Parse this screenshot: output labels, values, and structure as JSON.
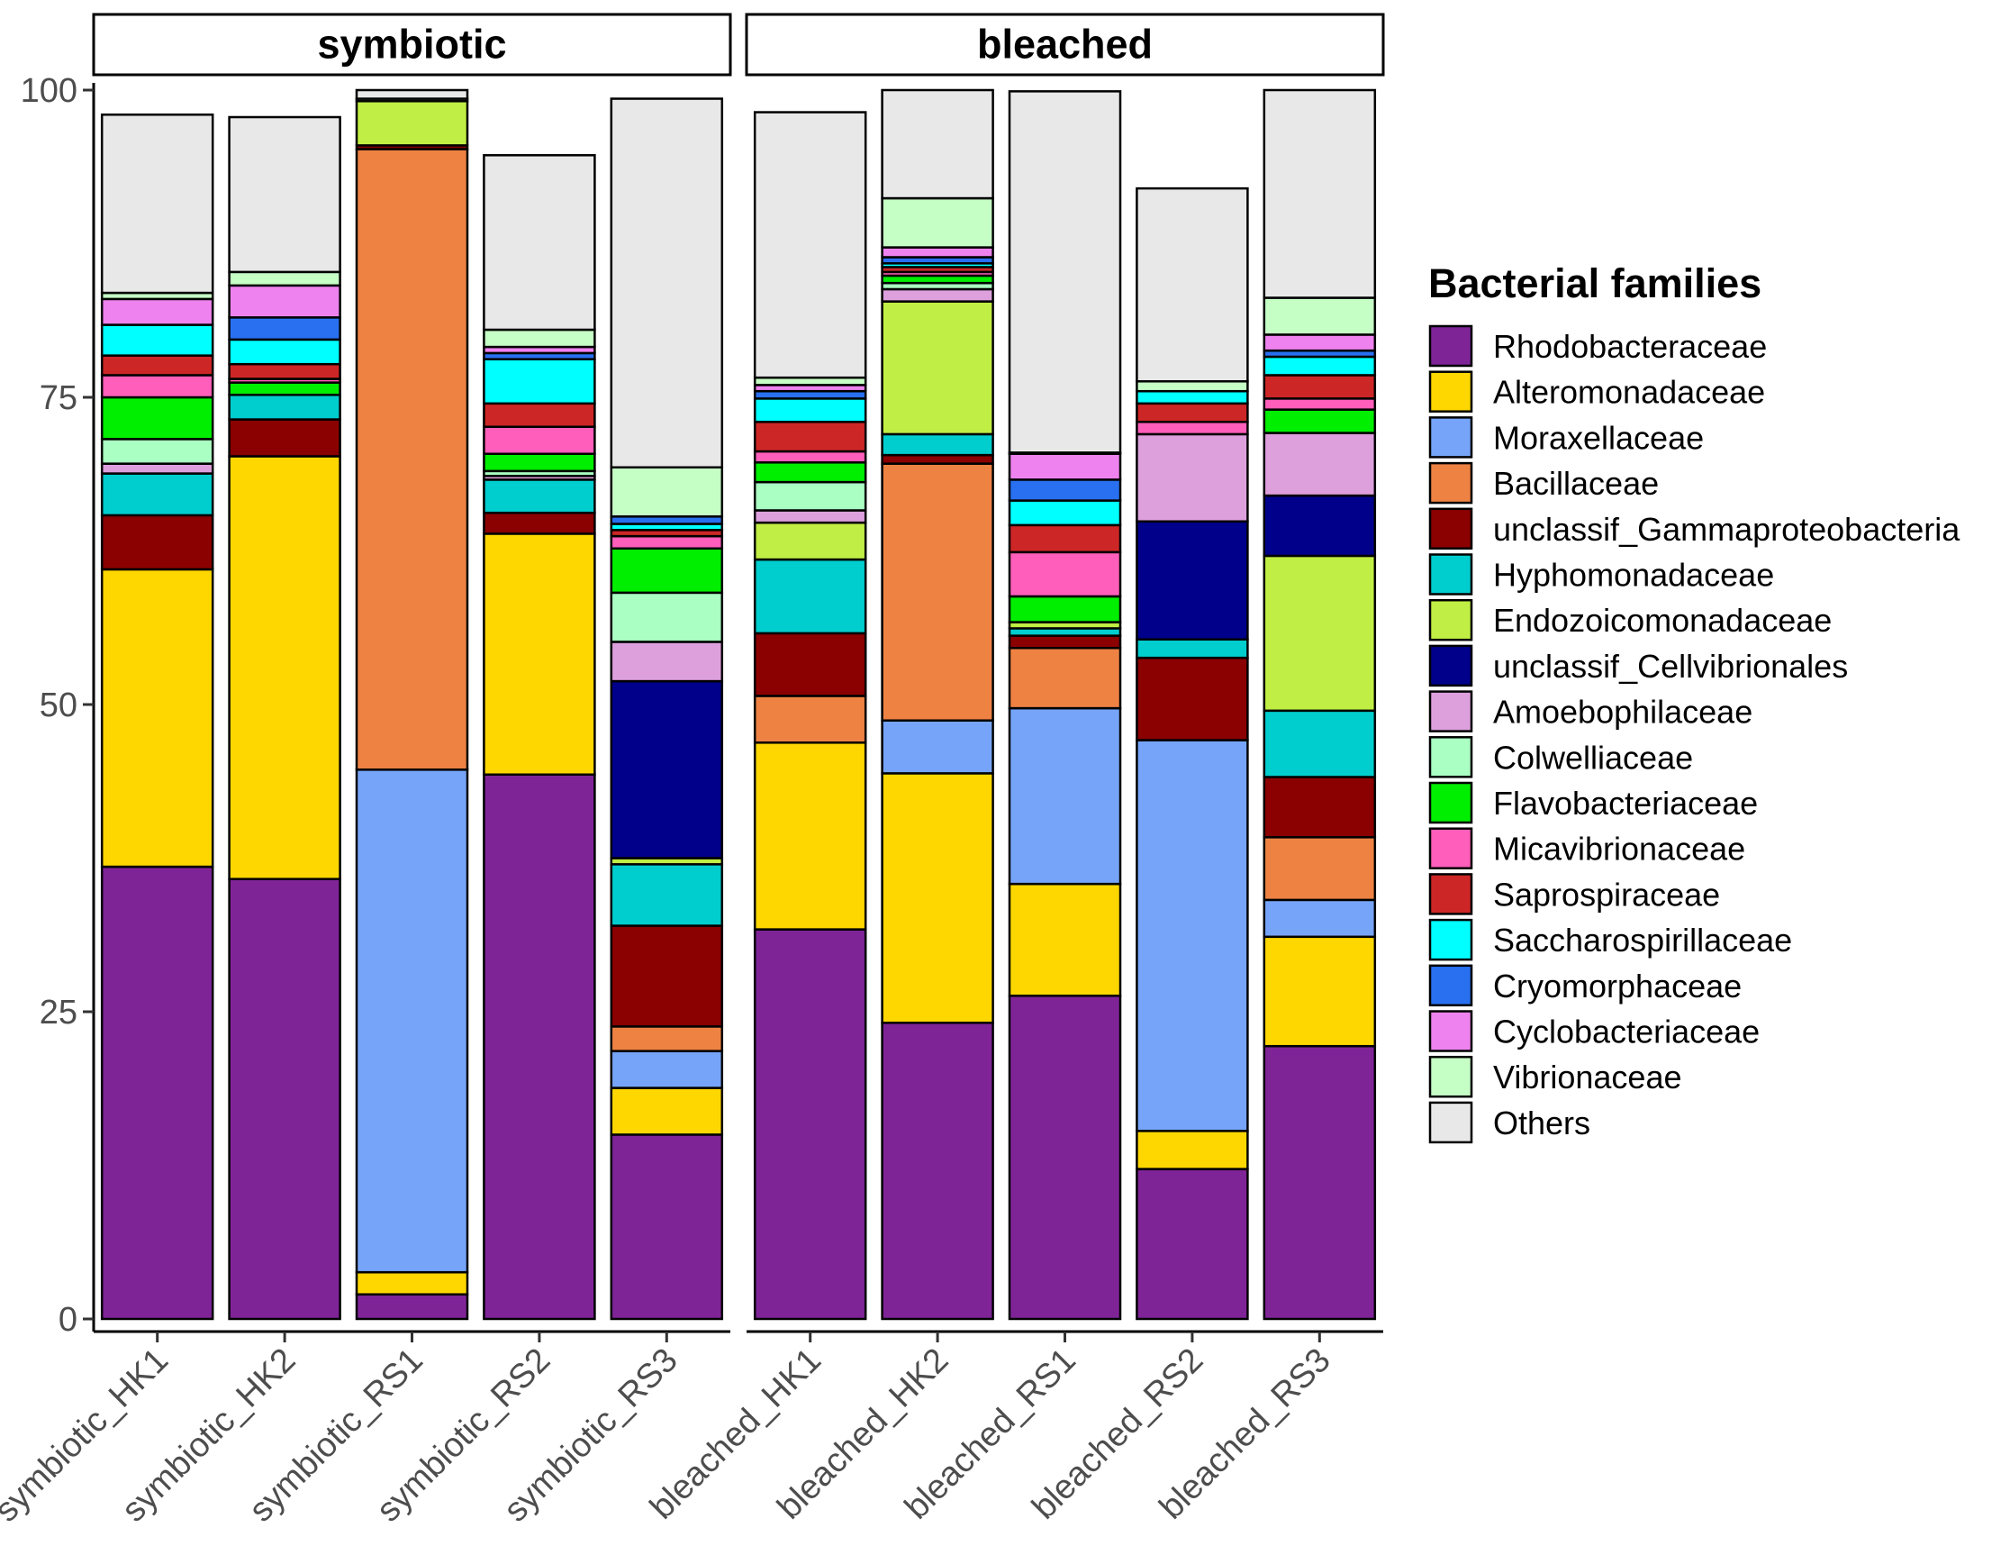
{
  "chart_data": {
    "type": "bar",
    "stacked": true,
    "ylim": [
      0,
      100
    ],
    "yticks": [
      "0",
      "25",
      "50",
      "75",
      "100"
    ],
    "legend": {
      "title": "Bacterial families",
      "placement": "right",
      "entries": [
        {
          "name": "Rhodobacteraceae",
          "color": "#7F2497"
        },
        {
          "name": "Alteromonadaceae",
          "color": "#FFD700"
        },
        {
          "name": "Moraxellaceae",
          "color": "#76A4F8"
        },
        {
          "name": "Bacillaceae",
          "color": "#EE8243"
        },
        {
          "name": "unclassif_Gammaproteobacteria",
          "color": "#8B0000"
        },
        {
          "name": "Hyphomonadaceae",
          "color": "#00CDCD"
        },
        {
          "name": "Endozoicomonadaceae",
          "color": "#C0EE44"
        },
        {
          "name": "unclassif_Cellvibrionales",
          "color": "#00008B"
        },
        {
          "name": "Amoebophilaceae",
          "color": "#DDA0DD"
        },
        {
          "name": "Colwelliaceae",
          "color": "#AAFFC3"
        },
        {
          "name": "Flavobacteriaceae",
          "color": "#00EE00"
        },
        {
          "name": "Micavibrionaceae",
          "color": "#FF5EBA"
        },
        {
          "name": "Saprospiraceae",
          "color": "#CD2626"
        },
        {
          "name": "Saccharospirillaceae",
          "color": "#00FFFF"
        },
        {
          "name": "Cryomorphaceae",
          "color": "#2870F0"
        },
        {
          "name": "Cyclobacteriaceae",
          "color": "#EE82EE"
        },
        {
          "name": "Vibrionaceae",
          "color": "#C6FFC6"
        },
        {
          "name": "Others",
          "color": "#E8E8E8"
        }
      ]
    },
    "panels": [
      {
        "label": "symbiotic",
        "samples": [
          {
            "name": "symbiotic_HK1",
            "values": [
              36.8,
              24.2,
              0,
              0,
              4.4,
              3.4,
              0,
              0,
              0.8,
              2.0,
              3.4,
              1.8,
              1.6,
              2.5,
              0,
              2.1,
              0.5,
              14.5
            ]
          },
          {
            "name": "symbiotic_HK2",
            "values": [
              35.8,
              34.4,
              0,
              0,
              3.0,
              2.0,
              0,
              0,
              0,
              0,
              1.0,
              0.3,
              1.2,
              2.0,
              1.8,
              2.6,
              1.1,
              12.6
            ]
          },
          {
            "name": "symbiotic_RS1",
            "values": [
              2.0,
              1.8,
              40.9,
              50.5,
              0.3,
              0,
              3.6,
              0,
              0,
              0,
              0,
              0,
              0,
              0,
              0,
              0,
              0.2,
              0.7
            ]
          },
          {
            "name": "symbiotic_RS2",
            "values": [
              44.3,
              19.6,
              0,
              0,
              1.7,
              2.7,
              0,
              0,
              0.3,
              0.4,
              1.4,
              2.2,
              1.9,
              3.6,
              0.5,
              0.5,
              1.4,
              14.2
            ]
          },
          {
            "name": "symbiotic_RS3",
            "values": [
              15.0,
              3.8,
              3.0,
              2.0,
              8.2,
              5.0,
              0.5,
              14.4,
              3.2,
              4.0,
              3.6,
              1.0,
              0.5,
              0.5,
              0.6,
              0,
              4.0,
              30.0
            ]
          }
        ]
      },
      {
        "label": "bleached",
        "samples": [
          {
            "name": "bleached_HK1",
            "values": [
              31.7,
              15.2,
              0,
              3.8,
              5.1,
              6.0,
              3.0,
              0,
              1.0,
              2.3,
              1.6,
              0.9,
              2.4,
              1.9,
              0.6,
              0.5,
              0.6,
              21.6
            ]
          },
          {
            "name": "bleached_HK2",
            "values": [
              24.1,
              20.3,
              4.3,
              20.9,
              0.7,
              1.7,
              10.8,
              0,
              1.0,
              0.5,
              0.6,
              0.3,
              0.4,
              0.3,
              0.5,
              0.8,
              4.0,
              8.8
            ]
          },
          {
            "name": "bleached_RS1",
            "values": [
              26.3,
              9.1,
              14.3,
              4.9,
              1.0,
              0.6,
              0.5,
              0,
              0,
              0,
              2.1,
              3.6,
              2.2,
              2.0,
              1.7,
              2.1,
              0.1,
              29.4
            ]
          },
          {
            "name": "bleached_RS2",
            "values": [
              12.2,
              3.1,
              31.8,
              0,
              6.7,
              1.5,
              0,
              9.6,
              7.1,
              0,
              0,
              1.0,
              1.5,
              1.0,
              0,
              0,
              0.8,
              15.7
            ]
          },
          {
            "name": "bleached_RS3",
            "values": [
              22.2,
              8.9,
              3.0,
              5.1,
              4.9,
              5.4,
              12.6,
              4.9,
              5.1,
              0,
              1.9,
              0.9,
              1.9,
              1.5,
              0.5,
              1.3,
              3.0,
              16.9
            ]
          }
        ]
      }
    ]
  }
}
